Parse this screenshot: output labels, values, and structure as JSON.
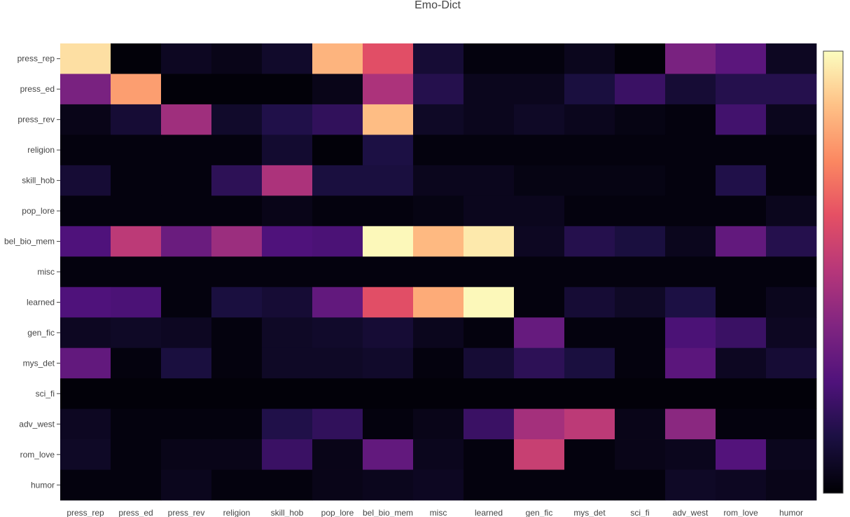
{
  "chart_data": {
    "type": "heatmap",
    "title": "Emo-Dict",
    "xlabel": "",
    "ylabel": "",
    "x_categories": [
      "press_rep",
      "press_ed",
      "press_rev",
      "religion",
      "skill_hob",
      "pop_lore",
      "bel_bio_mem",
      "misc",
      "learned",
      "gen_fic",
      "mys_det",
      "sci_fi",
      "adv_west",
      "rom_love",
      "humor"
    ],
    "y_categories": [
      "press_rep",
      "press_ed",
      "press_rev",
      "religion",
      "skill_hob",
      "pop_lore",
      "bel_bio_mem",
      "misc",
      "learned",
      "gen_fic",
      "mys_det",
      "sci_fi",
      "adv_west",
      "rom_love",
      "humor"
    ],
    "values": [
      [
        0.94,
        0.01,
        0.06,
        0.04,
        0.08,
        0.85,
        0.62,
        0.1,
        0.02,
        0.02,
        0.05,
        0.01,
        0.36,
        0.28,
        0.06
      ],
      [
        0.36,
        0.8,
        0.01,
        0.01,
        0.01,
        0.04,
        0.48,
        0.15,
        0.05,
        0.05,
        0.12,
        0.2,
        0.1,
        0.15,
        0.15
      ],
      [
        0.04,
        0.1,
        0.45,
        0.08,
        0.14,
        0.18,
        0.87,
        0.07,
        0.05,
        0.07,
        0.05,
        0.03,
        0.02,
        0.22,
        0.05
      ],
      [
        0.02,
        0.02,
        0.02,
        0.02,
        0.09,
        0.01,
        0.13,
        0.02,
        0.02,
        0.02,
        0.02,
        0.02,
        0.02,
        0.02,
        0.02
      ],
      [
        0.1,
        0.02,
        0.02,
        0.17,
        0.48,
        0.12,
        0.12,
        0.05,
        0.05,
        0.03,
        0.03,
        0.03,
        0.02,
        0.14,
        0.02
      ],
      [
        0.02,
        0.02,
        0.02,
        0.02,
        0.04,
        0.02,
        0.02,
        0.03,
        0.05,
        0.05,
        0.02,
        0.02,
        0.02,
        0.02,
        0.05
      ],
      [
        0.25,
        0.52,
        0.32,
        0.44,
        0.25,
        0.24,
        0.99,
        0.86,
        0.96,
        0.06,
        0.15,
        0.12,
        0.05,
        0.3,
        0.15
      ],
      [
        0.02,
        0.02,
        0.02,
        0.02,
        0.02,
        0.02,
        0.02,
        0.02,
        0.02,
        0.02,
        0.02,
        0.02,
        0.02,
        0.02,
        0.02
      ],
      [
        0.25,
        0.24,
        0.02,
        0.12,
        0.1,
        0.3,
        0.62,
        0.83,
        0.99,
        0.02,
        0.1,
        0.07,
        0.13,
        0.02,
        0.05
      ],
      [
        0.06,
        0.07,
        0.06,
        0.02,
        0.07,
        0.08,
        0.1,
        0.05,
        0.02,
        0.31,
        0.02,
        0.02,
        0.24,
        0.2,
        0.06
      ],
      [
        0.3,
        0.02,
        0.12,
        0.02,
        0.07,
        0.07,
        0.08,
        0.02,
        0.1,
        0.17,
        0.12,
        0.02,
        0.28,
        0.06,
        0.1
      ],
      [
        0.01,
        0.01,
        0.01,
        0.01,
        0.01,
        0.01,
        0.01,
        0.01,
        0.01,
        0.01,
        0.01,
        0.01,
        0.01,
        0.01,
        0.01
      ],
      [
        0.06,
        0.02,
        0.02,
        0.02,
        0.14,
        0.18,
        0.02,
        0.04,
        0.2,
        0.46,
        0.52,
        0.04,
        0.4,
        0.02,
        0.02
      ],
      [
        0.07,
        0.02,
        0.04,
        0.04,
        0.2,
        0.04,
        0.3,
        0.05,
        0.02,
        0.55,
        0.02,
        0.04,
        0.05,
        0.26,
        0.05
      ],
      [
        0.02,
        0.02,
        0.05,
        0.02,
        0.02,
        0.04,
        0.05,
        0.06,
        0.02,
        0.02,
        0.02,
        0.02,
        0.07,
        0.06,
        0.04
      ]
    ],
    "zlim": [
      0,
      1
    ],
    "colorscale": "magma",
    "grid": false,
    "colorbar": "right"
  }
}
